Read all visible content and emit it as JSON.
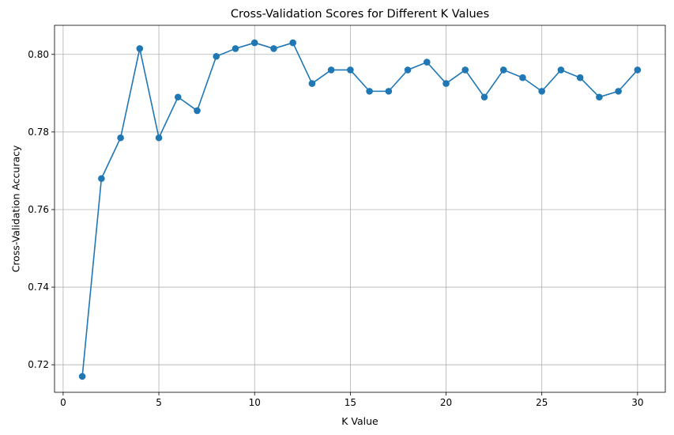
{
  "chart_data": {
    "type": "line",
    "title": "Cross-Validation Scores for Different K Values",
    "xlabel": "K Value",
    "ylabel": "Cross-Validation Accuracy",
    "xlim": [
      -0.45,
      31.45
    ],
    "ylim": [
      0.7129,
      0.8075
    ],
    "xticks": [
      0,
      5,
      10,
      15,
      20,
      25,
      30
    ],
    "yticks": [
      0.72,
      0.74,
      0.76,
      0.78,
      0.8
    ],
    "ytick_labels": [
      "0.72",
      "0.74",
      "0.76",
      "0.78",
      "0.80"
    ],
    "grid": true,
    "marker": "circle",
    "colors": {
      "series": "#1f77b4",
      "grid": "#b0b0b0",
      "axes": "#000000"
    },
    "series": [
      {
        "x": [
          1,
          2,
          3,
          4,
          5,
          6,
          7,
          8,
          9,
          10,
          11,
          12,
          13,
          14,
          15,
          16,
          17,
          18,
          19,
          20,
          21,
          22,
          23,
          24,
          25,
          26,
          27,
          28,
          29,
          30
        ],
        "y": [
          0.717,
          0.768,
          0.7785,
          0.8015,
          0.7785,
          0.789,
          0.7855,
          0.7995,
          0.8015,
          0.803,
          0.8015,
          0.803,
          0.7925,
          0.796,
          0.796,
          0.7905,
          0.7905,
          0.796,
          0.798,
          0.7925,
          0.796,
          0.789,
          0.796,
          0.794,
          0.7905,
          0.796,
          0.794,
          0.789,
          0.7905,
          0.796
        ]
      }
    ]
  }
}
